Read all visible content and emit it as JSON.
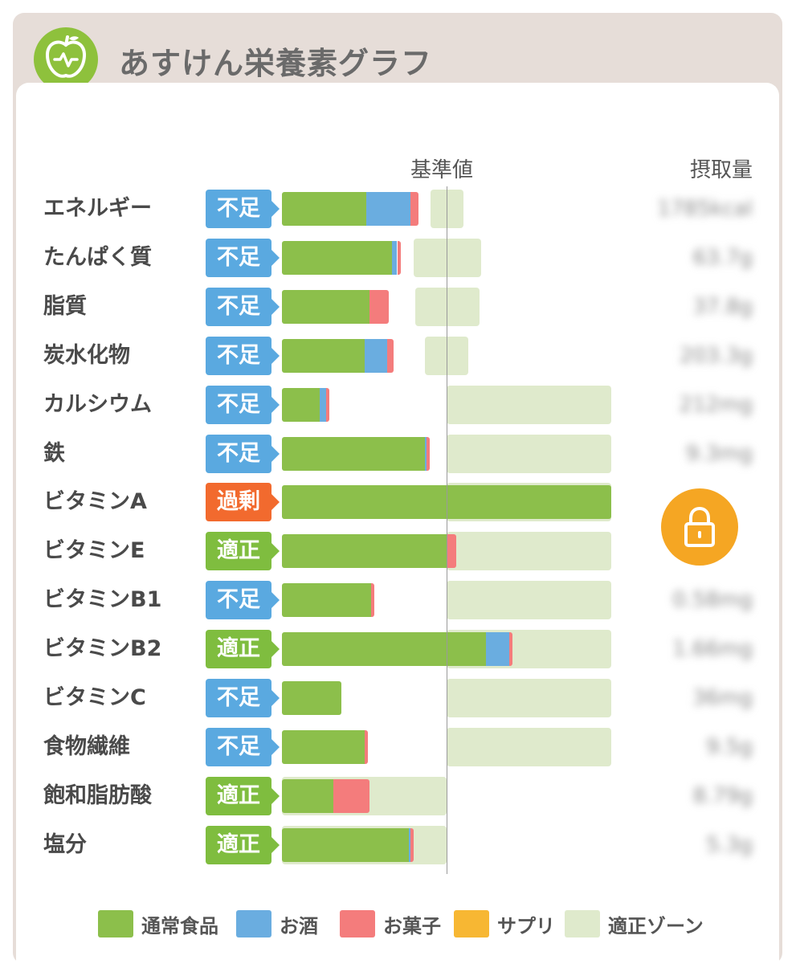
{
  "header": {
    "title": "あすけん栄養素グラフ"
  },
  "colors": {
    "normal_food": "#8cbf4b",
    "alcohol": "#6aade0",
    "snack": "#f47c7c",
    "supplement": "#f7b733",
    "zone": "#dfeacc",
    "badge_shortage": "#5aa9e0",
    "badge_proper": "#7fbd3f",
    "badge_excess": "#f26a2e"
  },
  "chart_data": {
    "type": "bar",
    "stacked": true,
    "column_headers": {
      "reference": "基準値",
      "intake": "摂取量"
    },
    "note": "values are percent of 基準値 (reference line = 100)",
    "rows": [
      {
        "name": "エネルギー",
        "status": "不足",
        "status_type": "shortage",
        "intake": "1785kcal",
        "zone": [
          90,
          110
        ],
        "food": 51,
        "alcohol": 27,
        "snack": 5,
        "supplement": 0
      },
      {
        "name": "たんぱく質",
        "status": "不足",
        "status_type": "shortage",
        "intake": "63.7g",
        "zone": [
          80,
          121
        ],
        "food": 67,
        "alcohol": 3,
        "snack": 2,
        "supplement": 0
      },
      {
        "name": "脂質",
        "status": "不足",
        "status_type": "shortage",
        "intake": "37.8g",
        "zone": [
          81,
          120
        ],
        "food": 53,
        "alcohol": 0,
        "snack": 12,
        "supplement": 0
      },
      {
        "name": "炭水化物",
        "status": "不足",
        "status_type": "shortage",
        "intake": "203.3g",
        "zone": [
          87,
          113
        ],
        "food": 50,
        "alcohol": 14,
        "snack": 4,
        "supplement": 0
      },
      {
        "name": "カルシウム",
        "status": "不足",
        "status_type": "shortage",
        "intake": "212mg",
        "zone": [
          100,
          200
        ],
        "food": 23,
        "alcohol": 4,
        "snack": 2,
        "supplement": 0
      },
      {
        "name": "鉄",
        "status": "不足",
        "status_type": "shortage",
        "intake": "9.3mg",
        "zone": [
          100,
          200
        ],
        "food": 87,
        "alcohol": 1,
        "snack": 2,
        "supplement": 0
      },
      {
        "name": "ビタミンA",
        "status": "過剰",
        "status_type": "excess",
        "intake": "",
        "zone": [
          100,
          200
        ],
        "food": 200,
        "alcohol": 0,
        "snack": 0,
        "supplement": 0
      },
      {
        "name": "ビタミンE",
        "status": "適正",
        "status_type": "proper",
        "intake": "",
        "zone": [
          100,
          200
        ],
        "food": 100,
        "alcohol": 0,
        "snack": 6,
        "supplement": 0
      },
      {
        "name": "ビタミンB1",
        "status": "不足",
        "status_type": "shortage",
        "intake": "0.58mg",
        "zone": [
          100,
          200
        ],
        "food": 54,
        "alcohol": 0,
        "snack": 2,
        "supplement": 0
      },
      {
        "name": "ビタミンB2",
        "status": "適正",
        "status_type": "proper",
        "intake": "1.66mg",
        "zone": [
          100,
          200
        ],
        "food": 124,
        "alcohol": 14,
        "snack": 2,
        "supplement": 0
      },
      {
        "name": "ビタミンC",
        "status": "不足",
        "status_type": "shortage",
        "intake": "36mg",
        "zone": [
          100,
          200
        ],
        "food": 36,
        "alcohol": 0,
        "snack": 0,
        "supplement": 0
      },
      {
        "name": "食物繊維",
        "status": "不足",
        "status_type": "shortage",
        "intake": "9.5g",
        "zone": [
          100,
          200
        ],
        "food": 50,
        "alcohol": 0,
        "snack": 2,
        "supplement": 0
      },
      {
        "name": "飽和脂肪酸",
        "status": "適正",
        "status_type": "proper",
        "intake": "8.79g",
        "zone": [
          0,
          100
        ],
        "food": 31,
        "alcohol": 0,
        "snack": 22,
        "supplement": 0
      },
      {
        "name": "塩分",
        "status": "適正",
        "status_type": "proper",
        "intake": "5.3g",
        "zone": [
          0,
          100
        ],
        "food": 77,
        "alcohol": 1,
        "snack": 2,
        "supplement": 0
      }
    ],
    "legend": [
      {
        "key": "food",
        "label": "通常食品",
        "color": "#8cbf4b"
      },
      {
        "key": "alcohol",
        "label": "お酒",
        "color": "#6aade0"
      },
      {
        "key": "snack",
        "label": "お菓子",
        "color": "#f47c7c"
      },
      {
        "key": "supplement",
        "label": "サプリ",
        "color": "#f7b733"
      },
      {
        "key": "zone",
        "label": "適正ゾーン",
        "color": "#dfeacc"
      }
    ]
  }
}
